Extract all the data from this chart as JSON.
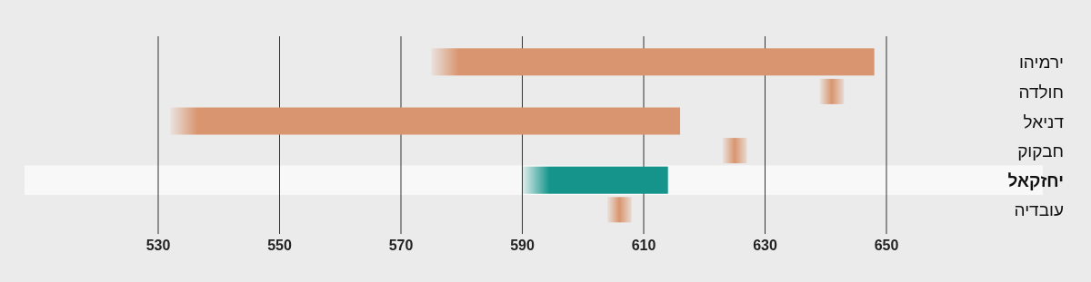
{
  "chart_data": {
    "type": "bar",
    "orientation": "horizontal",
    "categories": [
      "ירמיהו",
      "חולדה",
      "דניאל",
      "חבקוק",
      "יחזקאל",
      "עובדיה"
    ],
    "base": [
      575,
      639,
      532,
      623,
      590,
      604
    ],
    "values": [
      73,
      4,
      84,
      4,
      24,
      4
    ],
    "colors": [
      "#d9956f",
      "#d9956f",
      "#d9956f",
      "#d9956f",
      "#14948a",
      "#d9956f"
    ],
    "xlim": [
      530,
      650
    ],
    "xticks": [
      530,
      550,
      570,
      590,
      610,
      630,
      650
    ],
    "grid": "x",
    "bands": [
      {
        "axis": "y",
        "from": "יחזקאל",
        "to": "יחזקאל",
        "color": "#f8f8f8"
      }
    ]
  }
}
